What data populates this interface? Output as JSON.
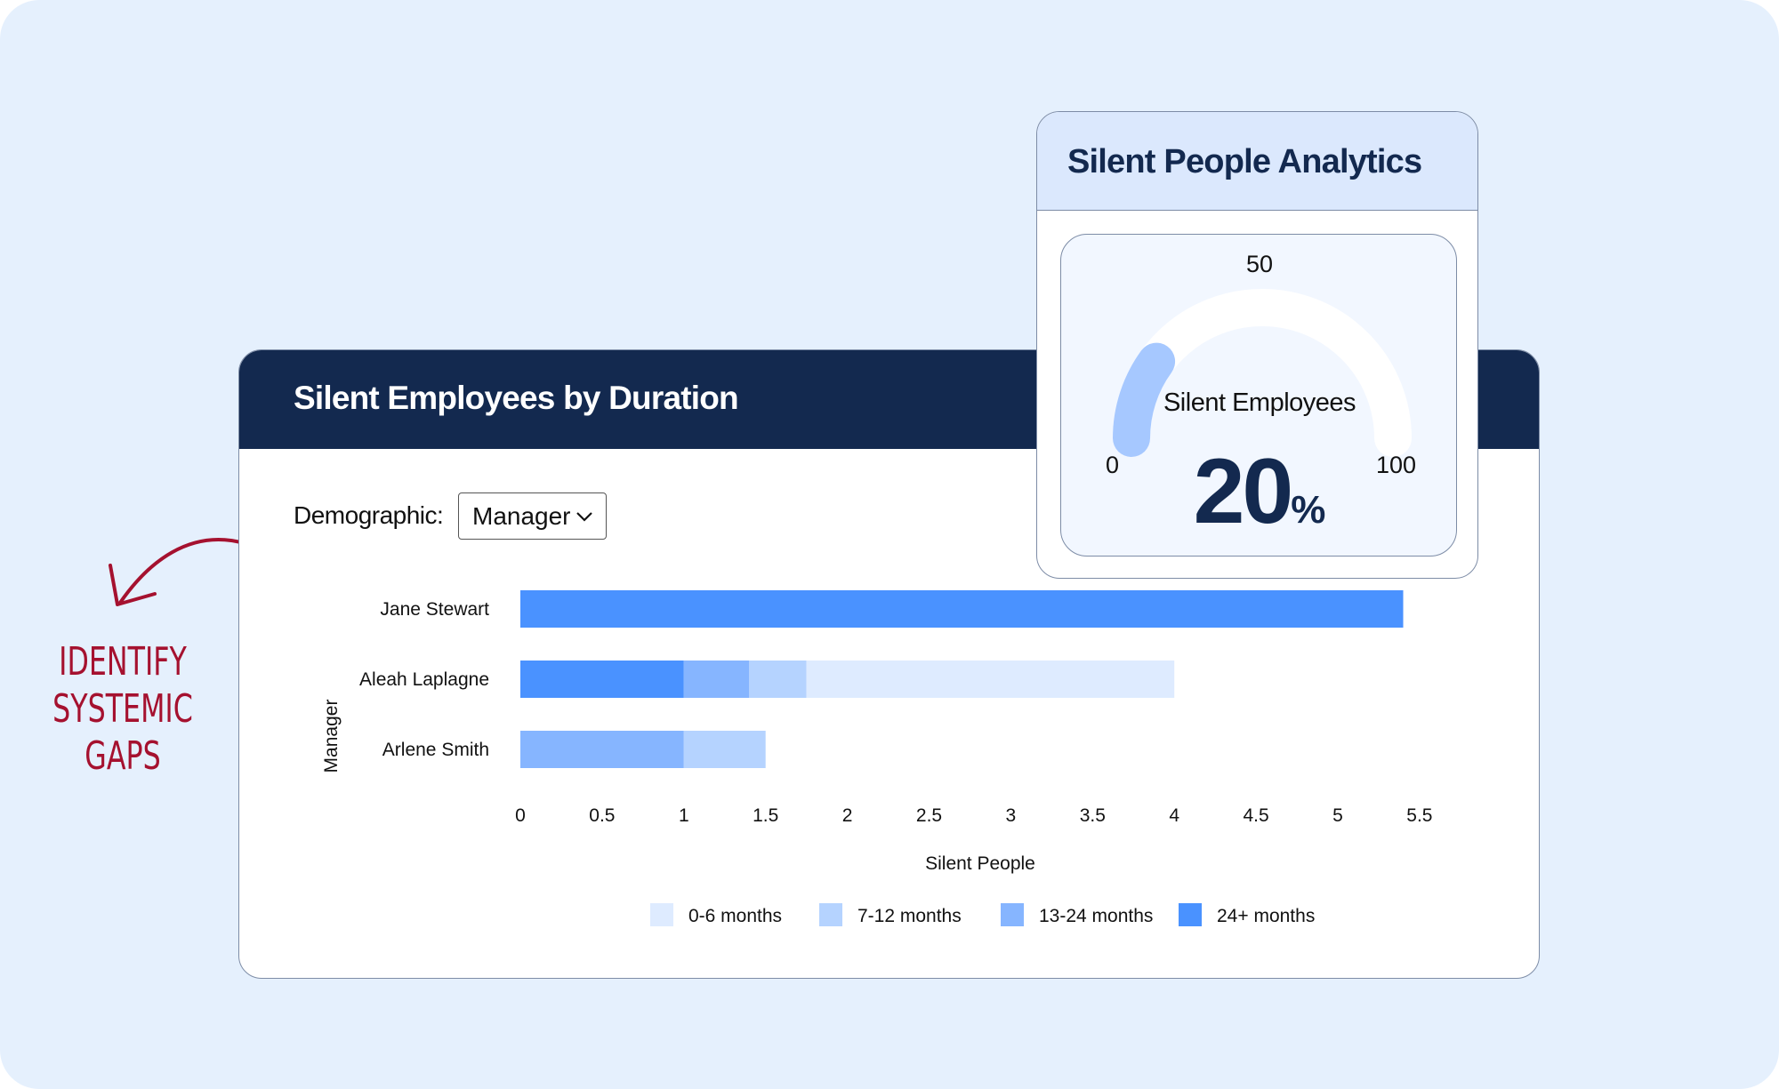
{
  "annotation": {
    "lines": [
      "IDENTIFY",
      "SYSTEMIC",
      "GAPS"
    ],
    "color": "#a5112f",
    "icon": "curved-arrow-icon"
  },
  "main_card": {
    "title": "Silent Employees by Duration",
    "demographic_label": "Demographic:",
    "demographic_value": "Manager",
    "dropdown_icon": "chevron-down-icon"
  },
  "gauge_card": {
    "title": "Silent People Analytics",
    "label": "Silent Employees",
    "value": "20",
    "unit": "%",
    "percent": 20,
    "min_label": "0",
    "mid_label": "50",
    "max_label": "100",
    "fill_color": "#a6c8ff",
    "track_color": "#ffffff"
  },
  "chart_data": {
    "type": "bar",
    "orientation": "horizontal",
    "stacked": true,
    "categories": [
      "Jane Stewart",
      "Aleah Laplagne",
      "Arlene Smith"
    ],
    "series": [
      {
        "name": "24+ months",
        "color": "#4a92ff",
        "values": [
          5.4,
          1,
          0
        ]
      },
      {
        "name": "13-24 months",
        "color": "#86b5ff",
        "values": [
          0,
          0.4,
          1
        ]
      },
      {
        "name": "7-12 months",
        "color": "#b5d3ff",
        "values": [
          0,
          0.35,
          0.5
        ]
      },
      {
        "name": "0-6 months",
        "color": "#deebff",
        "values": [
          0,
          2.25,
          0
        ]
      }
    ],
    "legend_order": [
      "0-6 months",
      "7-12 months",
      "13-24 months",
      "24+ months"
    ],
    "legend_colors": [
      "#deebff",
      "#b5d3ff",
      "#86b5ff",
      "#4a92ff"
    ],
    "xlabel": "Silent People",
    "ylabel": "Manager",
    "xlim": [
      0,
      5.5
    ],
    "xticks": [
      "0",
      "0.5",
      "1",
      "1.5",
      "2",
      "2.5",
      "3",
      "3.5",
      "4",
      "4.5",
      "5",
      "5.5"
    ],
    "grid": false,
    "legend_position": "bottom"
  }
}
